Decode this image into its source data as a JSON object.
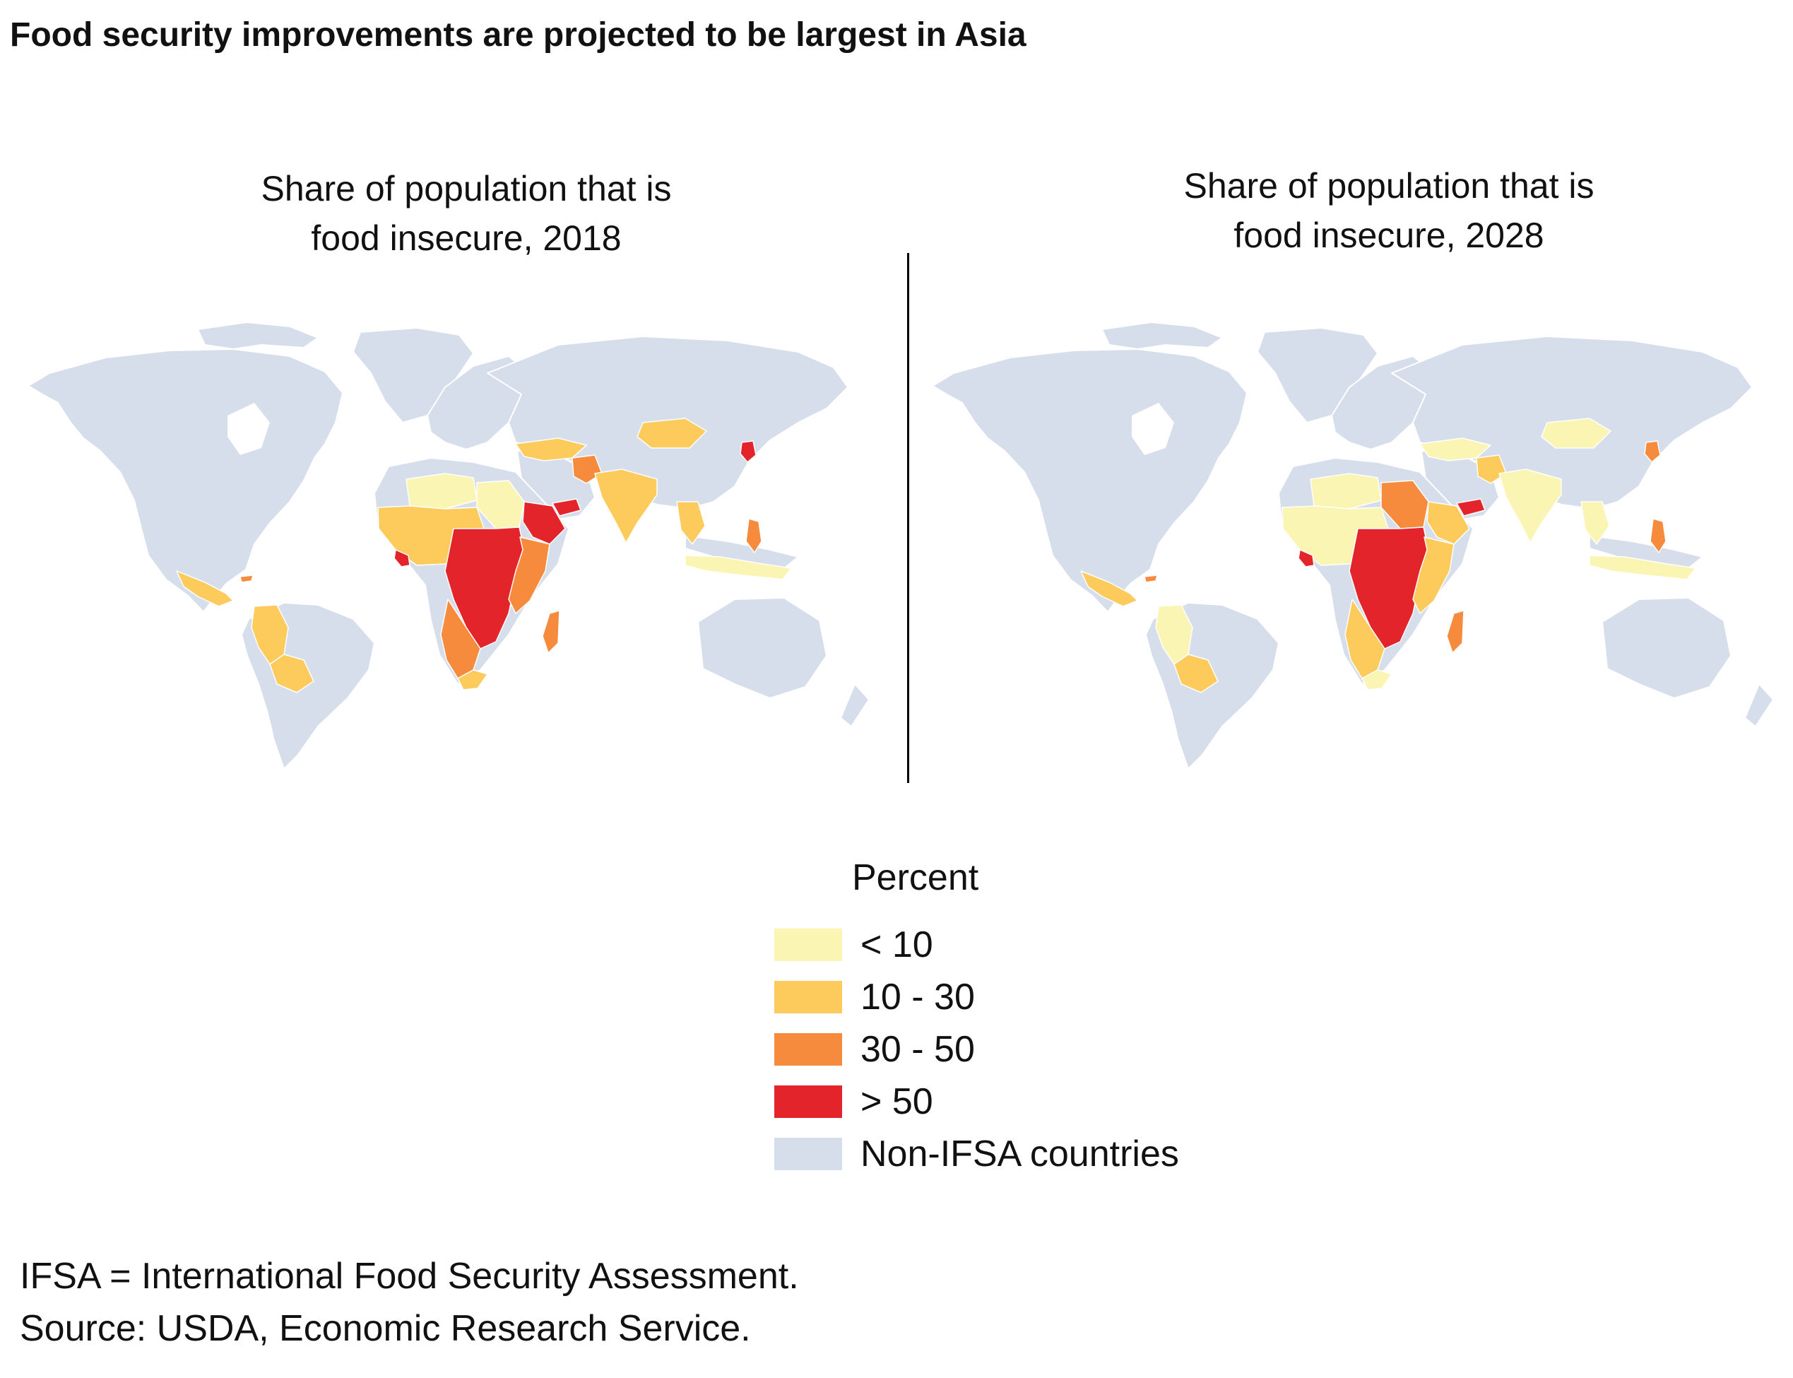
{
  "title": "Food security improvements are projected to be largest in Asia",
  "panels": [
    {
      "title_line1": "Share of population that is",
      "title_line2": "food insecure, 2018",
      "regions": {
        "west_africa": "10 - 30",
        "sahel": "< 10",
        "sudan_region": "< 10",
        "central_africa": "> 50",
        "horn_somalia": "> 50",
        "east_africa": "30 - 50",
        "southern_africa": "30 - 50",
        "madagascar": "30 - 50",
        "south_africa_tip": "10 - 30",
        "liberia": "> 50",
        "central_america": "10 - 30",
        "andes": "10 - 30",
        "bolivia": "10 - 30",
        "haiti": "30 - 50",
        "afghanistan": "30 - 50",
        "central_asia": "10 - 30",
        "mongolia": "10 - 30",
        "india": "10 - 30",
        "se_asia_mainland": "10 - 30",
        "philippines": "30 - 50",
        "indonesia": "< 10",
        "yemen": "> 50",
        "north_korea": "> 50"
      }
    },
    {
      "title_line1": "Share of population that is",
      "title_line2": "food insecure, 2028",
      "regions": {
        "west_africa": "< 10",
        "sahel": "< 10",
        "sudan_region": "30 - 50",
        "central_africa": "> 50",
        "horn_somalia": "10 - 30",
        "east_africa": "10 - 30",
        "southern_africa": "10 - 30",
        "madagascar": "30 - 50",
        "south_africa_tip": "< 10",
        "liberia": "> 50",
        "central_america": "10 - 30",
        "andes": "< 10",
        "bolivia": "10 - 30",
        "haiti": "30 - 50",
        "afghanistan": "10 - 30",
        "central_asia": "< 10",
        "mongolia": "< 10",
        "india": "< 10",
        "se_asia_mainland": "< 10",
        "philippines": "30 - 50",
        "indonesia": "< 10",
        "yemen": "> 50",
        "north_korea": "30 - 50"
      }
    }
  ],
  "legend": {
    "title": "Percent",
    "items": [
      {
        "label": "< 10",
        "color": "#fbf5b4"
      },
      {
        "label": "10 - 30",
        "color": "#fdca5c"
      },
      {
        "label": "30 - 50",
        "color": "#f68b3e"
      },
      {
        "label": "> 50",
        "color": "#e3242b"
      },
      {
        "label": "Non-IFSA countries",
        "color": "#d5deea"
      }
    ]
  },
  "notes": {
    "line1": "IFSA = International Food Security Assessment.",
    "line2": "Source: USDA, Economic Research Service."
  }
}
